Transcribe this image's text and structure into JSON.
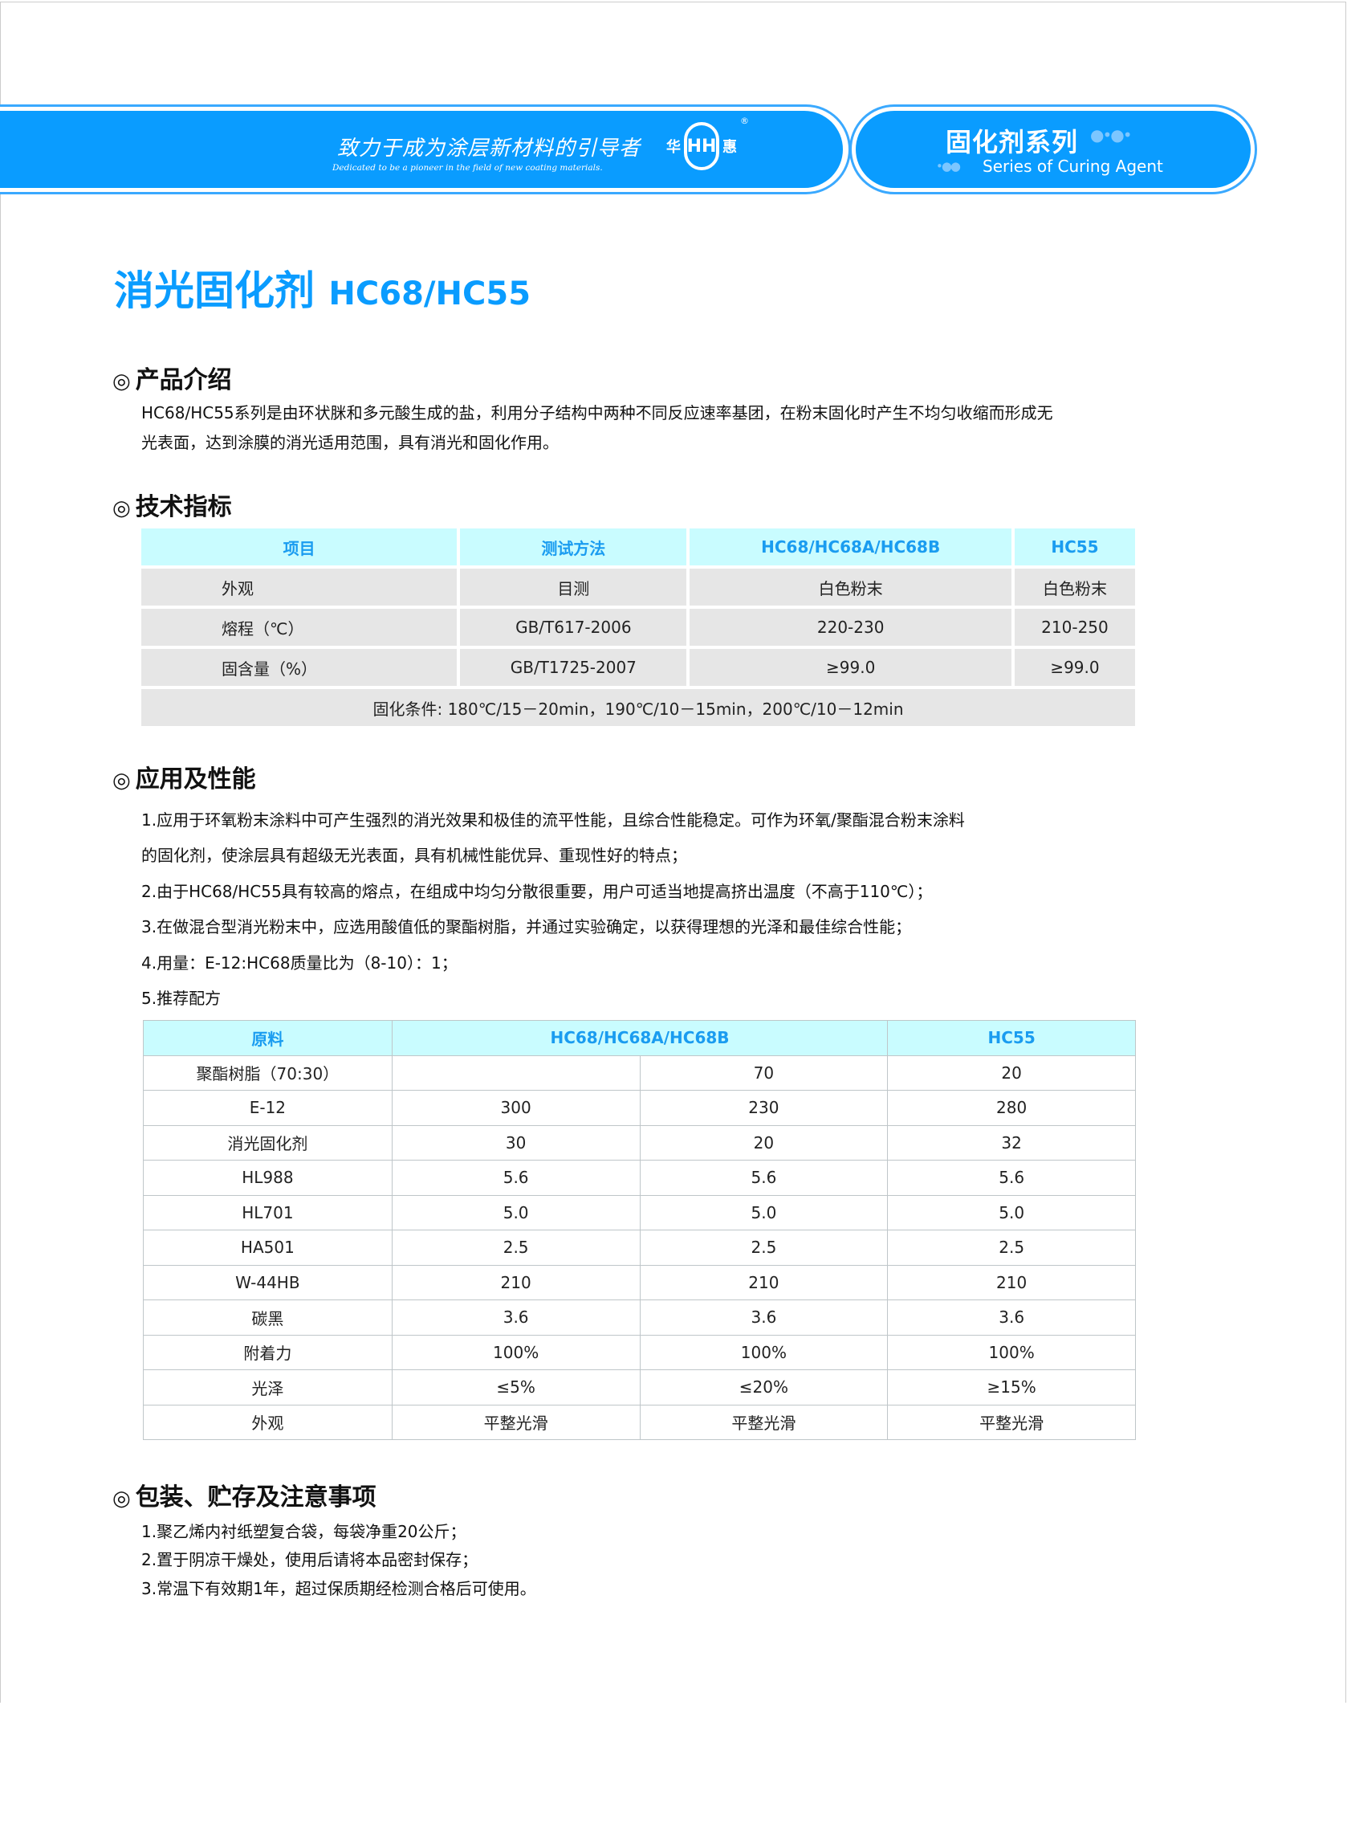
{
  "header": {
    "slogan_cn": "致力于成为涂层新材料的引导者",
    "slogan_en": "Dedicated to be a pioneer in the field of new coating materials.",
    "logo_left": "华",
    "logo_right": "惠",
    "logo_mark": "HH",
    "registered": "®",
    "series_cn": "固化剂系列",
    "series_en": "Series of Curing Agent",
    "colors": {
      "brand": "#0a9cff",
      "header_cell": "#c9fcff"
    }
  },
  "title": {
    "name": "消光固化剂",
    "code": "HC68/HC55"
  },
  "section_mark": "◎",
  "intro": {
    "heading": "产品介绍",
    "lines": [
      "HC68/HC55系列是由环状脒和多元酸生成的盐，利用分子结构中两种不同反应速率基团，在粉末固化时产生不均匀收缩而形成无",
      "光表面，达到涂膜的消光适用范围，具有消光和固化作用。"
    ]
  },
  "specs": {
    "heading": "技术指标",
    "headers": [
      "项目",
      "测试方法",
      "HC68/HC68A/HC68B",
      "HC55"
    ],
    "rows": [
      [
        "外观",
        "目测",
        "白色粉末",
        "白色粉末"
      ],
      [
        "熔程（℃）",
        "GB/T617-2006",
        "220-230",
        "210-250"
      ],
      [
        "固含量（%）",
        "GB/T1725-2007",
        "≥99.0",
        "≥99.0"
      ]
    ],
    "note": "固化条件: 180℃/15－20min，190℃/10－15min，200℃/10－12min"
  },
  "application": {
    "heading": "应用及性能",
    "lines": [
      "1.应用于环氧粉末涂料中可产生强烈的消光效果和极佳的流平性能，且综合性能稳定。可作为环氧/聚酯混合粉末涂料",
      "的固化剂，使涂层具有超级无光表面，具有机械性能优异、重现性好的特点；",
      "2.由于HC68/HC55具有较高的熔点，在组成中均匀分散很重要，用户可适当地提高挤出温度（不高于110℃）；",
      "3.在做混合型消光粉末中，应选用酸值低的聚酯树脂，并通过实验确定，以获得理想的光泽和最佳综合性能；",
      "4.用量：E-12:HC68质量比为（8-10）：1；",
      "5.推荐配方"
    ]
  },
  "formula": {
    "headers": [
      "原料",
      "HC68/HC68A/HC68B",
      "HC55"
    ],
    "rows": [
      [
        "聚酯树脂（70:30）",
        "",
        "70",
        "20"
      ],
      [
        "E-12",
        "300",
        "230",
        "280"
      ],
      [
        "消光固化剂",
        "30",
        "20",
        "32"
      ],
      [
        "HL988",
        "5.6",
        "5.6",
        "5.6"
      ],
      [
        "HL701",
        "5.0",
        "5.0",
        "5.0"
      ],
      [
        "HA501",
        "2.5",
        "2.5",
        "2.5"
      ],
      [
        "W-44HB",
        "210",
        "210",
        "210"
      ],
      [
        "碳黑",
        "3.6",
        "3.6",
        "3.6"
      ],
      [
        "附着力",
        "100%",
        "100%",
        "100%"
      ],
      [
        "光泽",
        "≤5%",
        "≤20%",
        "≥15%"
      ],
      [
        "外观",
        "平整光滑",
        "平整光滑",
        "平整光滑"
      ]
    ]
  },
  "packaging": {
    "heading": "包装、贮存及注意事项",
    "lines": [
      "1.聚乙烯内衬纸塑复合袋，每袋净重20公斤；",
      "2.置于阴凉干燥处，使用后请将本品密封保存；",
      "3.常温下有效期1年，超过保质期经检测合格后可使用。"
    ]
  }
}
